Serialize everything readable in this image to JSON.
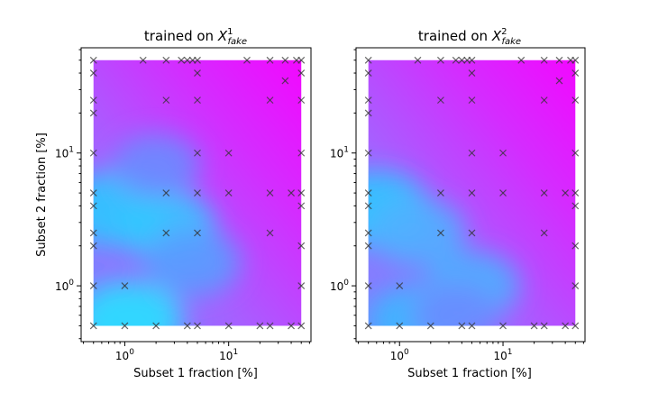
{
  "chart_data": [
    {
      "type": "contour",
      "title_main": "trained on ",
      "title_var": "X",
      "title_sup": "1",
      "title_sub": "fake",
      "xlabel": "Subset 1 fraction [%]",
      "ylabel": "Subset 2 fraction [%]",
      "xscale": "log",
      "yscale": "log",
      "xlim": [
        0.38,
        62
      ],
      "ylim": [
        0.38,
        62
      ],
      "x_ticks": [
        {
          "value": 1,
          "base": "10",
          "exp": "0"
        },
        {
          "value": 10,
          "base": "10",
          "exp": "1"
        }
      ],
      "y_ticks": [
        {
          "value": 1,
          "base": "10",
          "exp": "0"
        },
        {
          "value": 10,
          "base": "10",
          "exp": "1"
        }
      ],
      "colormap": "cool",
      "marker": "x",
      "points": [
        [
          0.5,
          50
        ],
        [
          1.5,
          50
        ],
        [
          2.5,
          50
        ],
        [
          3.5,
          50
        ],
        [
          4.0,
          50
        ],
        [
          4.5,
          50
        ],
        [
          5.0,
          50
        ],
        [
          15,
          50
        ],
        [
          25,
          50
        ],
        [
          35,
          50
        ],
        [
          45,
          50
        ],
        [
          50,
          50
        ],
        [
          0.5,
          40
        ],
        [
          5,
          40
        ],
        [
          50,
          40
        ],
        [
          35,
          35
        ],
        [
          0.5,
          25
        ],
        [
          2.5,
          25
        ],
        [
          5,
          25
        ],
        [
          25,
          25
        ],
        [
          50,
          25
        ],
        [
          0.5,
          20
        ],
        [
          0.5,
          10
        ],
        [
          5,
          10
        ],
        [
          10,
          10
        ],
        [
          50,
          10
        ],
        [
          0.5,
          5
        ],
        [
          2.5,
          5
        ],
        [
          5,
          5
        ],
        [
          10,
          5
        ],
        [
          25,
          5
        ],
        [
          40,
          5
        ],
        [
          50,
          5
        ],
        [
          0.5,
          4
        ],
        [
          50,
          4
        ],
        [
          0.5,
          2.5
        ],
        [
          2.5,
          2.5
        ],
        [
          5,
          2.5
        ],
        [
          25,
          2.5
        ],
        [
          0.5,
          2
        ],
        [
          50,
          2
        ],
        [
          0.5,
          1
        ],
        [
          1,
          1
        ],
        [
          50,
          1
        ],
        [
          0.5,
          0.5
        ],
        [
          1,
          0.5
        ],
        [
          2,
          0.5
        ],
        [
          4,
          0.5
        ],
        [
          5,
          0.5
        ],
        [
          10,
          0.5
        ],
        [
          20,
          0.5
        ],
        [
          25,
          0.5
        ],
        [
          40,
          0.5
        ],
        [
          50,
          0.5
        ]
      ],
      "blobs": [
        {
          "x": 0.8,
          "y": 3.8,
          "level": 0.25,
          "color": "#2ec8ff"
        },
        {
          "x": 2.5,
          "y": 2.8,
          "level": 0.3,
          "color": "#33c8ff"
        },
        {
          "x": 1.1,
          "y": 0.55,
          "level": 0.2,
          "color": "#28e0ff"
        },
        {
          "x": 4.5,
          "y": 1.5,
          "level": 0.35,
          "color": "#5a9cff"
        },
        {
          "x": 2.0,
          "y": 8.0,
          "level": 0.45,
          "color": "#6a8cff"
        }
      ]
    },
    {
      "type": "contour",
      "title_main": "trained on ",
      "title_var": "X",
      "title_sup": "2",
      "title_sub": "fake",
      "xlabel": "Subset 1 fraction [%]",
      "ylabel": "",
      "xscale": "log",
      "yscale": "log",
      "xlim": [
        0.38,
        62
      ],
      "ylim": [
        0.38,
        62
      ],
      "x_ticks": [
        {
          "value": 1,
          "base": "10",
          "exp": "0"
        },
        {
          "value": 10,
          "base": "10",
          "exp": "1"
        }
      ],
      "y_ticks": [
        {
          "value": 1,
          "base": "10",
          "exp": "0"
        },
        {
          "value": 10,
          "base": "10",
          "exp": "1"
        }
      ],
      "colormap": "cool",
      "marker": "x",
      "points": [
        [
          0.5,
          50
        ],
        [
          1.5,
          50
        ],
        [
          2.5,
          50
        ],
        [
          3.5,
          50
        ],
        [
          4.0,
          50
        ],
        [
          4.5,
          50
        ],
        [
          5.0,
          50
        ],
        [
          15,
          50
        ],
        [
          25,
          50
        ],
        [
          35,
          50
        ],
        [
          45,
          50
        ],
        [
          50,
          50
        ],
        [
          0.5,
          40
        ],
        [
          5,
          40
        ],
        [
          50,
          40
        ],
        [
          35,
          35
        ],
        [
          0.5,
          25
        ],
        [
          2.5,
          25
        ],
        [
          5,
          25
        ],
        [
          25,
          25
        ],
        [
          50,
          25
        ],
        [
          0.5,
          20
        ],
        [
          0.5,
          10
        ],
        [
          5,
          10
        ],
        [
          10,
          10
        ],
        [
          50,
          10
        ],
        [
          0.5,
          5
        ],
        [
          2.5,
          5
        ],
        [
          5,
          5
        ],
        [
          10,
          5
        ],
        [
          25,
          5
        ],
        [
          40,
          5
        ],
        [
          50,
          5
        ],
        [
          0.5,
          4
        ],
        [
          50,
          4
        ],
        [
          0.5,
          2.5
        ],
        [
          2.5,
          2.5
        ],
        [
          5,
          2.5
        ],
        [
          25,
          2.5
        ],
        [
          0.5,
          2
        ],
        [
          50,
          2
        ],
        [
          0.5,
          1
        ],
        [
          1,
          1
        ],
        [
          50,
          1
        ],
        [
          0.5,
          0.5
        ],
        [
          1,
          0.5
        ],
        [
          2,
          0.5
        ],
        [
          4,
          0.5
        ],
        [
          5,
          0.5
        ],
        [
          10,
          0.5
        ],
        [
          20,
          0.5
        ],
        [
          25,
          0.5
        ],
        [
          40,
          0.5
        ],
        [
          50,
          0.5
        ]
      ],
      "blobs": [
        {
          "x": 0.6,
          "y": 3.8,
          "level": 0.22,
          "color": "#2ec8ff"
        },
        {
          "x": 1.5,
          "y": 2.5,
          "level": 0.35,
          "color": "#50b0ff"
        },
        {
          "x": 1.5,
          "y": 0.55,
          "level": 0.3,
          "color": "#3ab8ff"
        },
        {
          "x": 5.0,
          "y": 1.0,
          "level": 0.35,
          "color": "#4ab0ff"
        },
        {
          "x": 3.5,
          "y": 0.6,
          "level": 0.45,
          "color": "#6c8cff"
        }
      ]
    }
  ]
}
